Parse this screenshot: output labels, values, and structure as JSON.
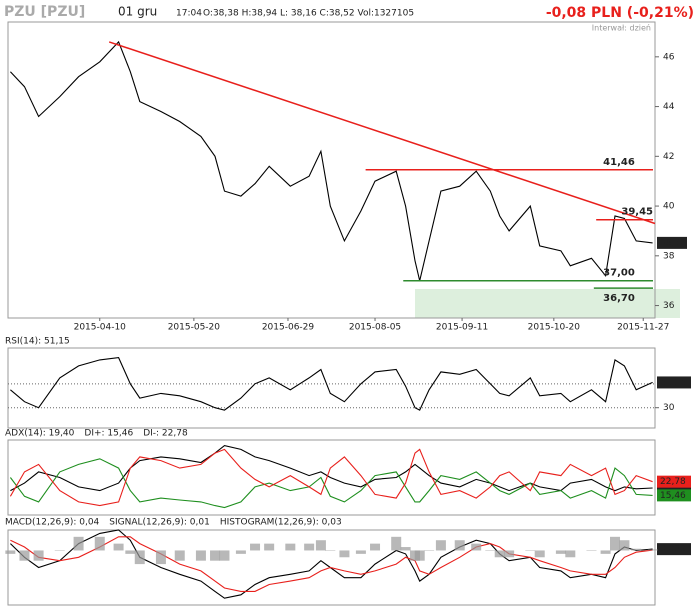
{
  "header": {
    "symbol": "PZU [PZU]",
    "date": "01 gru",
    "time": "17:04",
    "quote": "O:38,38 H:38,94 L: 38,16 C:38,52 Vol:1327105",
    "change": "-0,08 PLN (-0,21%)",
    "interval": "Interwał: dzień"
  },
  "chart_data": [
    {
      "type": "line",
      "x": [
        "2015-03-03",
        "2015-03-09",
        "2015-03-15",
        "2015-03-24",
        "2015-04-01",
        "2015-04-10",
        "2015-04-18",
        "2015-04-23",
        "2015-04-27",
        "2015-05-06",
        "2015-05-14",
        "2015-05-23",
        "2015-05-29",
        "2015-06-02",
        "2015-06-09",
        "2015-06-15",
        "2015-06-21",
        "2015-06-30",
        "2015-07-08",
        "2015-07-13",
        "2015-07-17",
        "2015-07-23",
        "2015-07-30",
        "2015-08-05",
        "2015-08-14",
        "2015-08-18",
        "2015-08-22",
        "2015-08-24",
        "2015-08-28",
        "2015-09-02",
        "2015-09-10",
        "2015-09-17",
        "2015-09-23",
        "2015-09-27",
        "2015-10-01",
        "2015-10-10",
        "2015-10-14",
        "2015-10-23",
        "2015-10-27",
        "2015-11-05",
        "2015-11-11",
        "2015-11-15",
        "2015-11-19",
        "2015-11-24",
        "2015-12-01"
      ],
      "xlim": [
        "2015-03-02",
        "2015-12-02"
      ],
      "xticks": [
        "2015-04-10",
        "2015-05-20",
        "2015-06-29",
        "2015-08-05",
        "2015-09-11",
        "2015-10-20",
        "2015-11-27"
      ],
      "ylim": [
        35.5,
        47.4
      ],
      "yticks": [
        36,
        38,
        40,
        42,
        44,
        46
      ],
      "series": [
        {
          "color": "#000000",
          "values": [
            45.4,
            44.8,
            43.6,
            44.4,
            45.2,
            45.8,
            46.6,
            45.4,
            44.2,
            43.8,
            43.4,
            42.8,
            42.0,
            40.6,
            40.4,
            40.9,
            41.6,
            40.8,
            41.2,
            42.2,
            40.0,
            38.6,
            39.8,
            41.0,
            41.4,
            40.0,
            37.8,
            37.0,
            38.6,
            40.6,
            40.8,
            41.4,
            40.6,
            39.6,
            39.0,
            40.0,
            38.4,
            38.2,
            37.6,
            37.9,
            37.2,
            39.6,
            39.5,
            38.6,
            38.52
          ]
        }
      ],
      "trendline": {
        "x": [
          "2015-04-14",
          "2015-12-02"
        ],
        "values": [
          46.6,
          39.3
        ],
        "color": "#e8201c"
      },
      "levels": [
        {
          "value": 41.46,
          "label": "41,46",
          "from": "2015-08-01",
          "color": "#e8201c"
        },
        {
          "value": 39.45,
          "label": "39,45",
          "from": "2015-11-07",
          "color": "#e8201c"
        },
        {
          "value": 37.0,
          "label": "37,00",
          "from": "2015-08-17",
          "color": "#2e8b2e"
        },
        {
          "value": 36.7,
          "label": "36,70",
          "from": "2015-11-06",
          "color": "#2e8b2e"
        }
      ],
      "last_price": {
        "value": 38.52,
        "label": "38,52"
      }
    },
    {
      "type": "line",
      "ylim": [
        13,
        80
      ],
      "yticks": [
        30
      ],
      "reference_lines": [
        30,
        50
      ],
      "series": [
        {
          "name": "RSI(14): 51,15",
          "color": "#000000",
          "end_label": "51,15",
          "values": [
            45,
            35,
            30,
            55,
            65,
            70,
            72,
            50,
            38,
            42,
            40,
            35,
            30,
            28,
            38,
            50,
            55,
            45,
            55,
            62,
            42,
            35,
            50,
            60,
            62,
            48,
            30,
            28,
            45,
            60,
            58,
            62,
            50,
            42,
            40,
            55,
            40,
            42,
            35,
            45,
            35,
            70,
            65,
            45,
            51.15
          ]
        }
      ]
    },
    {
      "type": "line",
      "ylim": [
        5,
        45
      ],
      "series": [
        {
          "name": "ADX(14): 19,40",
          "color": "#000000",
          "end_label": "19,40",
          "values": [
            18,
            22,
            28,
            25,
            20,
            18,
            22,
            30,
            34,
            36,
            35,
            33,
            38,
            42,
            40,
            36,
            34,
            30,
            26,
            28,
            25,
            22,
            20,
            24,
            25,
            28,
            32,
            30,
            26,
            22,
            20,
            24,
            22,
            20,
            18,
            22,
            20,
            18,
            22,
            24,
            20,
            18,
            20,
            19,
            19.4
          ]
        },
        {
          "name": "DI+: 15,46",
          "color": "#1f8f1f",
          "end_label": "15,46",
          "values": [
            25,
            15,
            12,
            28,
            32,
            35,
            30,
            18,
            12,
            14,
            13,
            12,
            10,
            9,
            12,
            20,
            22,
            18,
            20,
            25,
            15,
            12,
            18,
            26,
            28,
            20,
            12,
            12,
            18,
            26,
            24,
            28,
            22,
            18,
            16,
            22,
            16,
            18,
            14,
            18,
            14,
            30,
            26,
            16,
            15.46
          ]
        },
        {
          "name": "DI-: 22,78",
          "color": "#e8201c",
          "end_label": "22,78",
          "values": [
            15,
            28,
            32,
            18,
            12,
            10,
            12,
            30,
            36,
            34,
            30,
            32,
            38,
            40,
            30,
            24,
            20,
            26,
            20,
            16,
            30,
            36,
            26,
            16,
            14,
            22,
            38,
            40,
            28,
            16,
            18,
            14,
            20,
            26,
            28,
            18,
            28,
            26,
            32,
            26,
            30,
            16,
            18,
            26,
            22.78
          ]
        }
      ]
    },
    {
      "type": "line",
      "ylim": [
        -1.6,
        0.6
      ],
      "series": [
        {
          "name": "MACD(12,26,9): 0,04",
          "color": "#000000",
          "end_label": "0,039",
          "values": [
            0.2,
            -0.2,
            -0.5,
            -0.3,
            0.2,
            0.5,
            0.6,
            0.3,
            -0.2,
            -0.5,
            -0.7,
            -0.9,
            -1.2,
            -1.4,
            -1.3,
            -1.0,
            -0.8,
            -0.7,
            -0.6,
            -0.3,
            -0.5,
            -0.8,
            -0.8,
            -0.4,
            0.0,
            -0.1,
            -0.6,
            -0.9,
            -0.7,
            -0.2,
            0.1,
            0.3,
            0.2,
            -0.1,
            -0.3,
            -0.2,
            -0.5,
            -0.6,
            -0.8,
            -0.7,
            -0.8,
            -0.1,
            0.1,
            0.0,
            0.039
          ]
        },
        {
          "name": "SIGNAL(12,26,9): 0,01",
          "color": "#e8201c",
          "values": [
            0.3,
            0.1,
            -0.2,
            -0.3,
            -0.2,
            0.1,
            0.4,
            0.4,
            0.2,
            -0.1,
            -0.4,
            -0.6,
            -0.9,
            -1.1,
            -1.2,
            -1.2,
            -1.0,
            -0.9,
            -0.8,
            -0.6,
            -0.5,
            -0.6,
            -0.7,
            -0.6,
            -0.4,
            -0.2,
            -0.3,
            -0.6,
            -0.7,
            -0.5,
            -0.2,
            0.1,
            0.2,
            0.1,
            -0.1,
            -0.2,
            -0.3,
            -0.5,
            -0.6,
            -0.7,
            -0.7,
            -0.5,
            -0.2,
            -0.05,
            0.01
          ]
        },
        {
          "name": "HISTOGRAM(12,26,9): 0,03",
          "color": "#9a9a9a",
          "type": "bar",
          "values": [
            -0.1,
            -0.3,
            -0.3,
            0,
            0.4,
            0.4,
            0.2,
            -0.1,
            -0.4,
            -0.4,
            -0.3,
            -0.3,
            -0.3,
            -0.3,
            -0.1,
            0.2,
            0.2,
            0.2,
            0.2,
            0.3,
            0,
            -0.2,
            -0.1,
            0.2,
            0.4,
            0.1,
            -0.3,
            -0.3,
            0,
            0.3,
            0.3,
            0.2,
            0,
            -0.2,
            -0.2,
            0,
            -0.2,
            -0.1,
            -0.2,
            0,
            -0.1,
            0.4,
            0.3,
            0.05,
            0.03
          ]
        }
      ]
    }
  ]
}
